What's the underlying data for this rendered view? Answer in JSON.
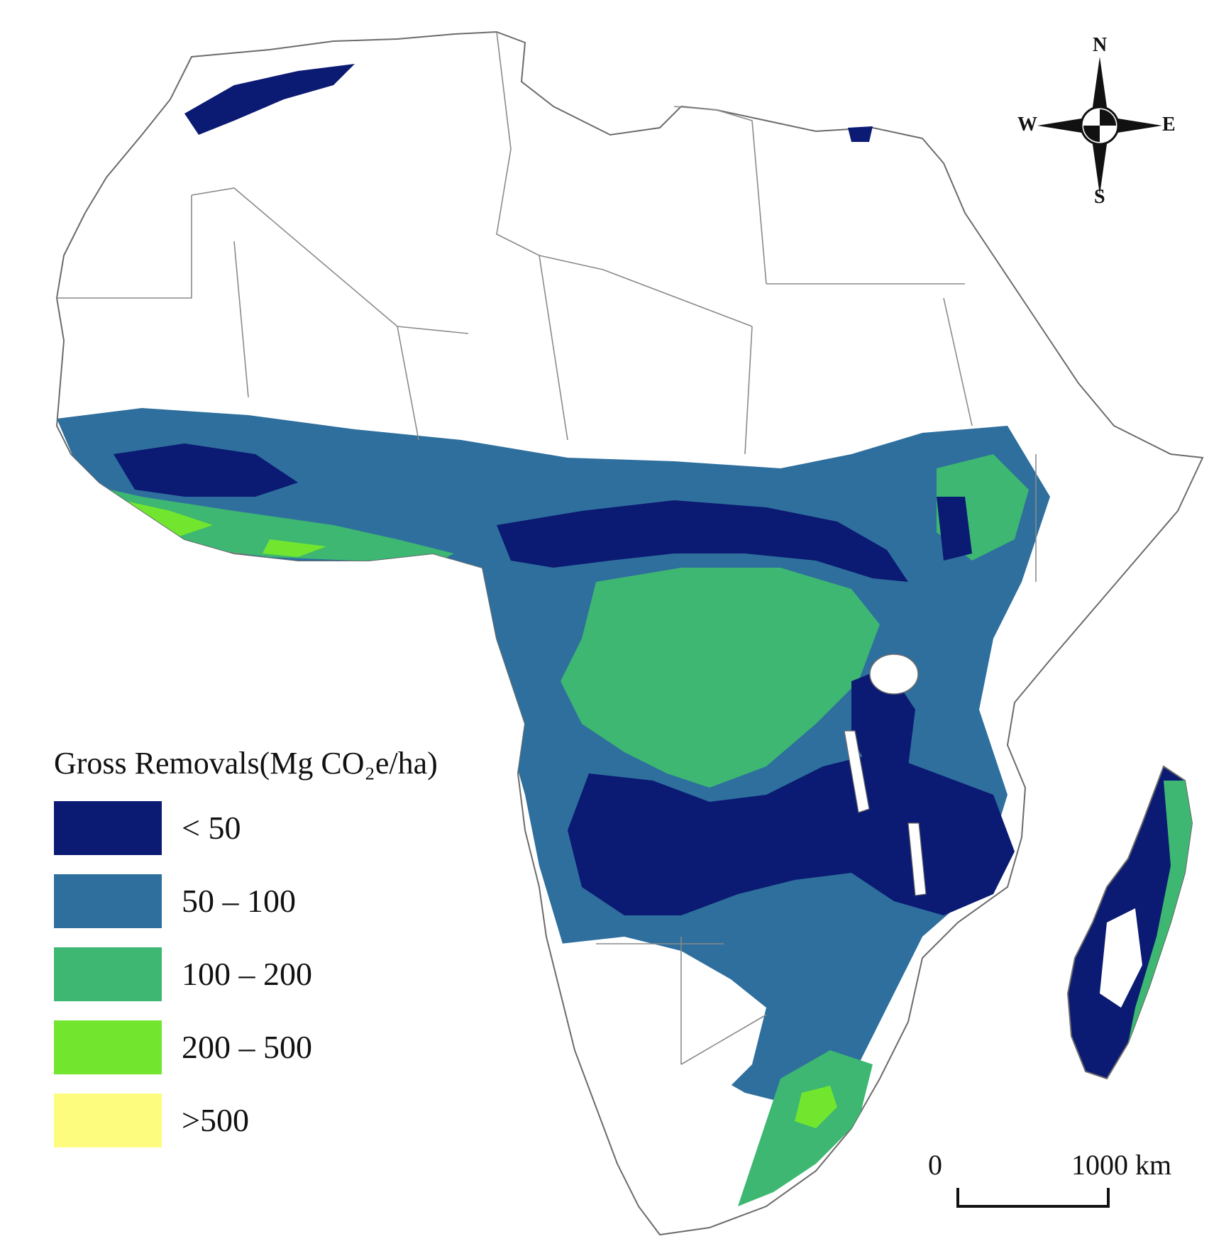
{
  "legend": {
    "title": "Gross Removals(Mg CO₂e/ha)",
    "items": [
      {
        "label": "< 50",
        "color": "#0b1a72"
      },
      {
        "label": "50 – 100",
        "color": "#2e6f9e"
      },
      {
        "label": "100 – 200",
        "color": "#3db771"
      },
      {
        "label": "200 – 500",
        "color": "#72e62f"
      },
      {
        "label": ">500",
        "color": "#fdfc7f"
      }
    ]
  },
  "compass": {
    "north": "N",
    "south": "S",
    "east": "E",
    "west": "W"
  },
  "scale_bar": {
    "start_label": "0",
    "end_label": "1000 km"
  },
  "colors": {
    "border": "#8a8a8a",
    "coast": "#6b6b6b",
    "background": "#ffffff"
  }
}
